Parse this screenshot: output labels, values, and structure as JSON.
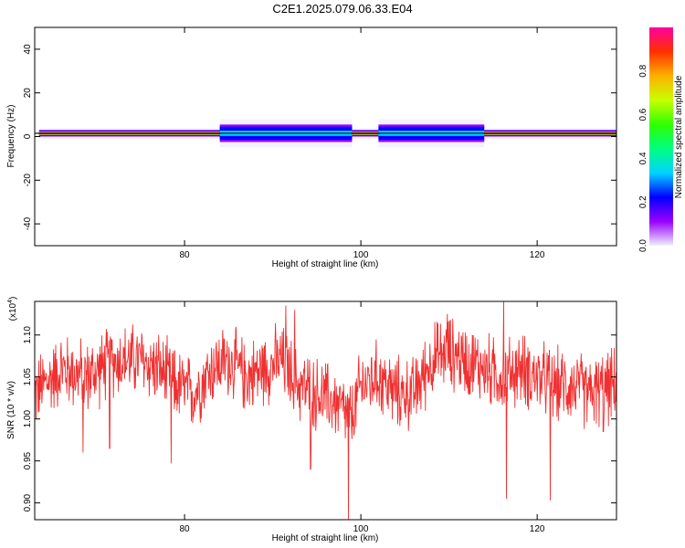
{
  "title": "C2E1.2025.079.06.33.E04",
  "chart_data": [
    {
      "type": "heatmap",
      "xlabel": "Height of straight line (km)",
      "ylabel": "Frequency (Hz)",
      "xlim": [
        63,
        129
      ],
      "ylim": [
        -50,
        50
      ],
      "x_ticks": [
        "80",
        "100",
        "120"
      ],
      "y_ticks": [
        "40",
        "20",
        "0",
        "-20",
        "-40"
      ],
      "band_center_hz": 1.5,
      "band_segments": [
        {
          "x0": 63.5,
          "x1": 84,
          "halfwidth": 1.5,
          "level": 0.95
        },
        {
          "x0": 84,
          "x1": 99,
          "halfwidth": 4,
          "level": 0.35
        },
        {
          "x0": 99,
          "x1": 102,
          "halfwidth": 1.5,
          "level": 0.95
        },
        {
          "x0": 102,
          "x1": 114,
          "halfwidth": 4,
          "level": 0.35
        },
        {
          "x0": 114,
          "x1": 129,
          "halfwidth": 1.5,
          "level": 0.95
        }
      ],
      "colorbar": {
        "label": "Normalized spectral amplitude",
        "range": [
          0.0,
          1.0
        ],
        "ticks": [
          "0.0",
          "0.2",
          "0.4",
          "0.6",
          "0.8"
        ],
        "colors": [
          "#f0f0ff",
          "#9a00ff",
          "#0000ff",
          "#00d4ff",
          "#00ff80",
          "#30ff00",
          "#c8ff00",
          "#ffb000",
          "#ff3000",
          "#ff00a0"
        ]
      }
    },
    {
      "type": "line",
      "xlabel": "Height of straight line (km)",
      "ylabel": "SNR (10 * v/v)",
      "y_multiplier": "(x10",
      "y_multiplier_exp": "4",
      "y_multiplier_close": ")",
      "xlim": [
        63,
        129
      ],
      "ylim": [
        0.88,
        1.14
      ],
      "x_ticks": [
        "80",
        "100",
        "120"
      ],
      "y_ticks": [
        "1.10",
        "1.05",
        "1.00",
        "0.95",
        "0.90"
      ],
      "color": "#f03030",
      "x": [
        63,
        66,
        69,
        72,
        75,
        77,
        79,
        81,
        83,
        85,
        87,
        89,
        91,
        93,
        95,
        97,
        98,
        99,
        100,
        102,
        104,
        106,
        108,
        110,
        112,
        114,
        116,
        118,
        120,
        122,
        124,
        126,
        129
      ],
      "y": [
        1.03,
        1.06,
        1.05,
        1.07,
        1.07,
        1.06,
        1.04,
        1.03,
        1.06,
        1.07,
        1.05,
        1.06,
        1.07,
        1.04,
        1.03,
        1.02,
        1.01,
        1.0,
        1.04,
        1.05,
        1.03,
        1.03,
        1.07,
        1.08,
        1.07,
        1.06,
        1.05,
        1.06,
        1.05,
        1.04,
        1.04,
        1.03,
        1.04
      ],
      "noise_amplitude": 0.035,
      "spikes": [
        {
          "x": 68.5,
          "y": 0.96
        },
        {
          "x": 71.5,
          "y": 0.965
        },
        {
          "x": 78.5,
          "y": 0.947
        },
        {
          "x": 91.5,
          "y": 1.135
        },
        {
          "x": 92.5,
          "y": 1.13
        },
        {
          "x": 94.3,
          "y": 0.94
        },
        {
          "x": 98.6,
          "y": 0.88
        },
        {
          "x": 109.8,
          "y": 1.125
        },
        {
          "x": 116.2,
          "y": 1.14
        },
        {
          "x": 116.5,
          "y": 0.905
        },
        {
          "x": 121.5,
          "y": 0.903
        },
        {
          "x": 127.5,
          "y": 0.985
        }
      ]
    }
  ]
}
